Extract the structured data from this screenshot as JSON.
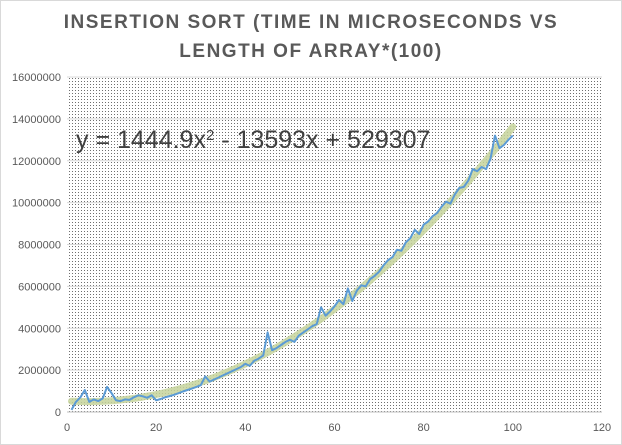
{
  "chart_data": {
    "type": "line",
    "title_lines": [
      "INSERTION SORT (TIME IN MICROSECONDS VS",
      "LENGTH OF ARRAY*(100)"
    ],
    "xlabel": "",
    "ylabel": "",
    "xlim": [
      0,
      120
    ],
    "ylim": [
      0,
      16000000
    ],
    "x_ticks": [
      "0",
      "20",
      "40",
      "60",
      "80",
      "100",
      "120"
    ],
    "y_ticks": [
      "0",
      "2000000",
      "4000000",
      "6000000",
      "8000000",
      "10000000",
      "12000000",
      "14000000",
      "16000000"
    ],
    "grid": "horizontal",
    "background": "dotted",
    "legend": "none",
    "trendline": {
      "type": "polynomial-order-2",
      "equation_text": "y = 1444.9x",
      "equation_sup": "2",
      "equation_rest": " - 13593x + 529307",
      "coefficients": [
        1444.9,
        -13593,
        529307
      ],
      "x_range": [
        1,
        100
      ]
    },
    "series": [
      {
        "color": "#5b9bd5",
        "points": [
          [
            1,
            100000
          ],
          [
            2,
            480000
          ],
          [
            3,
            700000
          ],
          [
            4,
            1050000
          ],
          [
            5,
            480000
          ],
          [
            6,
            600000
          ],
          [
            7,
            520000
          ],
          [
            8,
            650000
          ],
          [
            9,
            1200000
          ],
          [
            10,
            900000
          ],
          [
            11,
            560000
          ],
          [
            12,
            520000
          ],
          [
            13,
            600000
          ],
          [
            14,
            580000
          ],
          [
            15,
            700000
          ],
          [
            16,
            800000
          ],
          [
            17,
            750000
          ],
          [
            18,
            680000
          ],
          [
            19,
            800000
          ],
          [
            20,
            560000
          ],
          [
            21,
            620000
          ],
          [
            22,
            700000
          ],
          [
            23,
            760000
          ],
          [
            24,
            820000
          ],
          [
            25,
            900000
          ],
          [
            26,
            980000
          ],
          [
            27,
            1050000
          ],
          [
            28,
            1120000
          ],
          [
            29,
            1200000
          ],
          [
            30,
            1280000
          ],
          [
            31,
            1700000
          ],
          [
            32,
            1450000
          ],
          [
            33,
            1550000
          ],
          [
            34,
            1650000
          ],
          [
            35,
            1750000
          ],
          [
            36,
            1850000
          ],
          [
            37,
            1950000
          ],
          [
            38,
            2050000
          ],
          [
            39,
            2150000
          ],
          [
            40,
            2300000
          ],
          [
            41,
            2200000
          ],
          [
            42,
            2450000
          ],
          [
            43,
            2550000
          ],
          [
            44,
            2700000
          ],
          [
            45,
            3800000
          ],
          [
            46,
            2950000
          ],
          [
            47,
            3050000
          ],
          [
            48,
            3200000
          ],
          [
            49,
            3350000
          ],
          [
            50,
            3450000
          ],
          [
            51,
            3350000
          ],
          [
            52,
            3650000
          ],
          [
            53,
            3800000
          ],
          [
            54,
            3950000
          ],
          [
            55,
            4100000
          ],
          [
            56,
            4200000
          ],
          [
            57,
            5000000
          ],
          [
            58,
            4600000
          ],
          [
            59,
            4800000
          ],
          [
            60,
            5050000
          ],
          [
            61,
            5350000
          ],
          [
            62,
            5150000
          ],
          [
            63,
            5900000
          ],
          [
            64,
            5300000
          ],
          [
            65,
            5800000
          ],
          [
            66,
            6050000
          ],
          [
            67,
            6000000
          ],
          [
            68,
            6350000
          ],
          [
            69,
            6500000
          ],
          [
            70,
            6700000
          ],
          [
            71,
            7000000
          ],
          [
            72,
            7250000
          ],
          [
            73,
            7400000
          ],
          [
            74,
            7750000
          ],
          [
            75,
            7700000
          ],
          [
            76,
            8100000
          ],
          [
            77,
            8300000
          ],
          [
            78,
            8700000
          ],
          [
            79,
            8500000
          ],
          [
            80,
            8950000
          ],
          [
            81,
            9100000
          ],
          [
            82,
            9350000
          ],
          [
            83,
            9500000
          ],
          [
            84,
            9800000
          ],
          [
            85,
            10050000
          ],
          [
            86,
            9950000
          ],
          [
            87,
            10400000
          ],
          [
            88,
            10700000
          ],
          [
            89,
            10750000
          ],
          [
            90,
            11050000
          ],
          [
            91,
            11600000
          ],
          [
            92,
            11500000
          ],
          [
            93,
            11700000
          ],
          [
            94,
            11600000
          ],
          [
            95,
            12100000
          ],
          [
            96,
            13200000
          ],
          [
            97,
            12600000
          ],
          [
            98,
            12750000
          ],
          [
            99,
            13000000
          ],
          [
            100,
            13200000
          ]
        ]
      }
    ],
    "trendline_color": "#c5d39b"
  }
}
